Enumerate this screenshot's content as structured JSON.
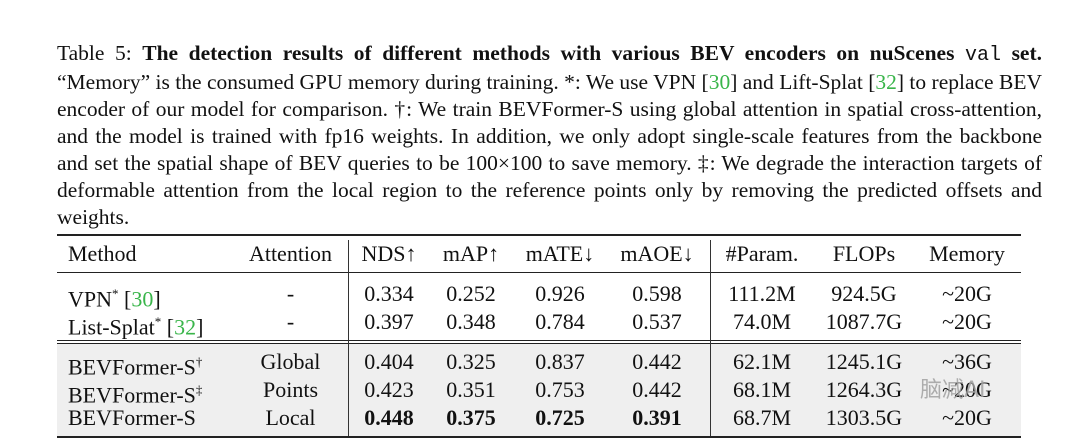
{
  "caption": {
    "label": "Table 5: ",
    "title_bold": "The detection results of different methods with various BEV encoders on nuScenes",
    "split": "val",
    "title_bold2": " set.",
    "text1": " “Memory” is the consumed GPU memory during training. *: We use VPN [",
    "cite_vpn": "30",
    "text2": "] and Lift-Splat [",
    "cite_lift": "32",
    "text3": "] to replace BEV encoder of our model for comparison. †: We train BEVFormer-S using global attention in spatial cross-attention, and the model is trained with fp16 weights. In addition, we only adopt single-scale features from the backbone and set the spatial shape of BEV queries to be 100×100 to save memory. ‡: We degrade the interaction targets of deformable attention from the local region to the reference points only by removing the predicted offsets and weights."
  },
  "table": {
    "headers": [
      "Method",
      "Attention",
      "NDS↑",
      "mAP↑",
      "mATE↓",
      "mAOE↓",
      "#Param.",
      "FLOPs",
      "Memory"
    ],
    "rows": [
      {
        "method": "VPN",
        "mark": "*",
        "cite": "30",
        "attention": "-",
        "nds": "0.334",
        "map": "0.252",
        "mate": "0.926",
        "maoe": "0.598",
        "param": "111.2M",
        "flops": "924.5G",
        "memory": "~20G"
      },
      {
        "method": "List-Splat",
        "mark": "*",
        "cite": "32",
        "attention": "-",
        "nds": "0.397",
        "map": "0.348",
        "mate": "0.784",
        "maoe": "0.537",
        "param": "74.0M",
        "flops": "1087.7G",
        "memory": "~20G"
      },
      {
        "method": "BEVFormer-S",
        "mark": "†",
        "attention": "Global",
        "nds": "0.404",
        "map": "0.325",
        "mate": "0.837",
        "maoe": "0.442",
        "param": "62.1M",
        "flops": "1245.1G",
        "memory": "~36G"
      },
      {
        "method": "BEVFormer-S",
        "mark": "‡",
        "attention": "Points",
        "nds": "0.423",
        "map": "0.351",
        "mate": "0.753",
        "maoe": "0.442",
        "param": "68.1M",
        "flops": "1264.3G",
        "memory": "~20G"
      },
      {
        "method": "BEVFormer-S",
        "mark": "",
        "attention": "Local",
        "nds": "0.448",
        "map": "0.375",
        "mate": "0.725",
        "maoe": "0.391",
        "param": "68.7M",
        "flops": "1303.5G",
        "memory": "~20G"
      }
    ]
  },
  "watermark": "脑减AI"
}
